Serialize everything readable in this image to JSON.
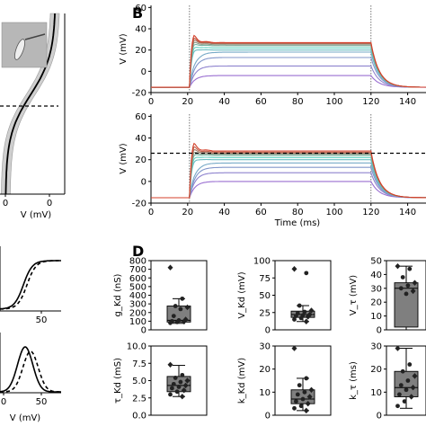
{
  "figure": {
    "panel_B": "B",
    "panel_D": "D"
  },
  "colors": {
    "trace_top": "#d4412b",
    "trace_mid": "#5fd1c0",
    "trace_low": "#9a6fd1",
    "box_fill": "#7f7f7f",
    "band_fill": "#cfcfcf"
  },
  "chart_data": [
    {
      "type": "line",
      "panel": "A",
      "xlabel": "V (mV)",
      "x_ticks": [
        "0",
        "0"
      ],
      "ylim_note": "sigmoid with grey band and dashed threshold line, inset image",
      "series": [
        {
          "values": [
            [
              -100,
              0
            ],
            [
              -60,
              0.1
            ],
            [
              -30,
              0.45
            ],
            [
              -20,
              0.5
            ],
            [
              -5,
              0.7
            ],
            [
              0,
              0.95
            ],
            [
              5,
              1.0
            ]
          ]
        }
      ]
    },
    {
      "type": "line",
      "panel": "B-top",
      "ylabel": "V (mV)",
      "x_ticks": [
        "0",
        "20",
        "40",
        "60",
        "80",
        "100",
        "120",
        "140"
      ],
      "y_ticks": [
        "-20",
        "0",
        "20",
        "40",
        "60"
      ],
      "xlim": [
        0,
        150
      ],
      "ylim": [
        -20,
        62
      ],
      "stim_lines_x": [
        21,
        120
      ],
      "traces": [
        {
          "amplitude": 27,
          "peak": 53
        },
        {
          "amplitude": 26.5,
          "peak": 48
        },
        {
          "amplitude": 26,
          "peak": 44
        },
        {
          "amplitude": 25,
          "peak": 40
        },
        {
          "amplitude": 24,
          "peak": 36
        },
        {
          "amplitude": 22,
          "peak": 31
        },
        {
          "amplitude": 20,
          "peak": 26
        },
        {
          "amplitude": 18,
          "peak": 21
        },
        {
          "amplitude": 13,
          "peak": 13
        },
        {
          "amplitude": 5,
          "peak": 5
        },
        {
          "amplitude": -4,
          "peak": -4
        }
      ],
      "baseline": -15
    },
    {
      "type": "line",
      "panel": "B-bottom",
      "xlabel": "Time (ms)",
      "ylabel": "V (mV)",
      "x_ticks": [
        "0",
        "20",
        "40",
        "60",
        "80",
        "100",
        "120",
        "140"
      ],
      "y_ticks": [
        "-20",
        "0",
        "20",
        "40",
        "60"
      ],
      "xlim": [
        0,
        150
      ],
      "ylim": [
        -20,
        62
      ],
      "stim_lines_x": [
        21,
        120
      ],
      "dashed_level": 26,
      "traces": [
        {
          "amplitude": 28,
          "peak": 55
        },
        {
          "amplitude": 27,
          "peak": 49
        },
        {
          "amplitude": 26,
          "peak": 44
        },
        {
          "amplitude": 25,
          "peak": 39
        },
        {
          "amplitude": 24,
          "peak": 34
        },
        {
          "amplitude": 22,
          "peak": 29
        },
        {
          "amplitude": 20,
          "peak": 24
        },
        {
          "amplitude": 17,
          "peak": 19
        },
        {
          "amplitude": 13,
          "peak": 13
        },
        {
          "amplitude": 8,
          "peak": 8
        },
        {
          "amplitude": 0,
          "peak": 0
        }
      ],
      "baseline": -15
    },
    {
      "type": "line",
      "panel": "C-top",
      "x_ticks": [
        "50"
      ],
      "series": [
        {
          "name": "solid",
          "values": [
            [
              -40,
              0.02
            ],
            [
              0,
              0.5
            ],
            [
              20,
              0.95
            ],
            [
              60,
              1.0
            ]
          ]
        },
        {
          "name": "dashed",
          "values": [
            [
              -40,
              0.0
            ],
            [
              5,
              0.5
            ],
            [
              25,
              0.95
            ],
            [
              60,
              1.0
            ]
          ]
        }
      ]
    },
    {
      "type": "line",
      "panel": "C-bottom",
      "xlabel": "V (mV)",
      "x_ticks": [
        "0",
        "50"
      ],
      "series": [
        {
          "name": "solid",
          "values": [
            [
              -40,
              0.05
            ],
            [
              20,
              1.0
            ],
            [
              70,
              0.03
            ]
          ]
        },
        {
          "name": "dashed",
          "values": [
            [
              -40,
              0.03
            ],
            [
              26,
              0.9
            ],
            [
              70,
              0.02
            ]
          ]
        }
      ]
    },
    {
      "type": "box",
      "panel": "D1",
      "ylabel": "g_Kd (nS)",
      "y_ticks": [
        "0",
        "100",
        "200",
        "300",
        "400",
        "500",
        "600",
        "700",
        "800"
      ],
      "ylim": [
        0,
        800
      ],
      "box": {
        "q1": 90,
        "median": 110,
        "q3": 275,
        "whisker_low": 75,
        "whisker_high": 360
      },
      "points": [
        720,
        360,
        275,
        260,
        240,
        160,
        120,
        110,
        100,
        95,
        90,
        80
      ]
    },
    {
      "type": "box",
      "panel": "D2",
      "ylabel": "V_Kd (mV)",
      "y_ticks": [
        "0",
        "25",
        "50",
        "75",
        "100"
      ],
      "ylim": [
        0,
        100
      ],
      "box": {
        "q1": 18,
        "median": 22,
        "q3": 27,
        "whisker_low": 12,
        "whisker_high": 35
      },
      "points": [
        88,
        82,
        35,
        28,
        26,
        24,
        22,
        21,
        20,
        19,
        17,
        15,
        12
      ]
    },
    {
      "type": "box",
      "panel": "D3",
      "ylabel": "V_τ (mV)",
      "y_ticks": [
        "0",
        "10",
        "20",
        "30",
        "40",
        "50"
      ],
      "ylim": [
        0,
        50
      ],
      "box": {
        "q1": 2,
        "median": 30,
        "q3": 34,
        "whisker_low": 0,
        "whisker_high": 46
      },
      "points": [
        46,
        44,
        38,
        34,
        32,
        30,
        28,
        26
      ]
    },
    {
      "type": "box",
      "panel": "D4",
      "ylabel": "τ_Kd (mS)",
      "y_ticks": [
        "0.0",
        "2.5",
        "5.0",
        "7.5",
        "10.0"
      ],
      "ylim": [
        0,
        10
      ],
      "box": {
        "q1": 3.4,
        "median": 4.3,
        "q3": 5.6,
        "whisker_low": 2.7,
        "whisker_high": 7.2
      },
      "points": [
        7.3,
        5.8,
        5.4,
        5.0,
        4.8,
        4.5,
        4.3,
        4.1,
        3.9,
        3.6,
        3.4,
        3.0,
        2.7
      ]
    },
    {
      "type": "box",
      "panel": "D5",
      "ylabel": "k_Kd (mV)",
      "y_ticks": [
        "0",
        "10",
        "20",
        "30"
      ],
      "ylim": [
        0,
        30
      ],
      "box": {
        "q1": 5,
        "median": 7,
        "q3": 11,
        "whisker_low": 2,
        "whisker_high": 16
      },
      "points": [
        29,
        16,
        13,
        11,
        10,
        9,
        8,
        7,
        6,
        5,
        4,
        3,
        2
      ]
    },
    {
      "type": "box",
      "panel": "D6",
      "ylabel": "k_τ (ms)",
      "y_ticks": [
        "0",
        "10",
        "20",
        "30"
      ],
      "ylim": [
        0,
        30
      ],
      "box": {
        "q1": 8,
        "median": 12,
        "q3": 19,
        "whisker_low": 3,
        "whisker_high": 29
      },
      "points": [
        29,
        22,
        19,
        17,
        15,
        13,
        12,
        11,
        9,
        8,
        6,
        4
      ]
    }
  ]
}
